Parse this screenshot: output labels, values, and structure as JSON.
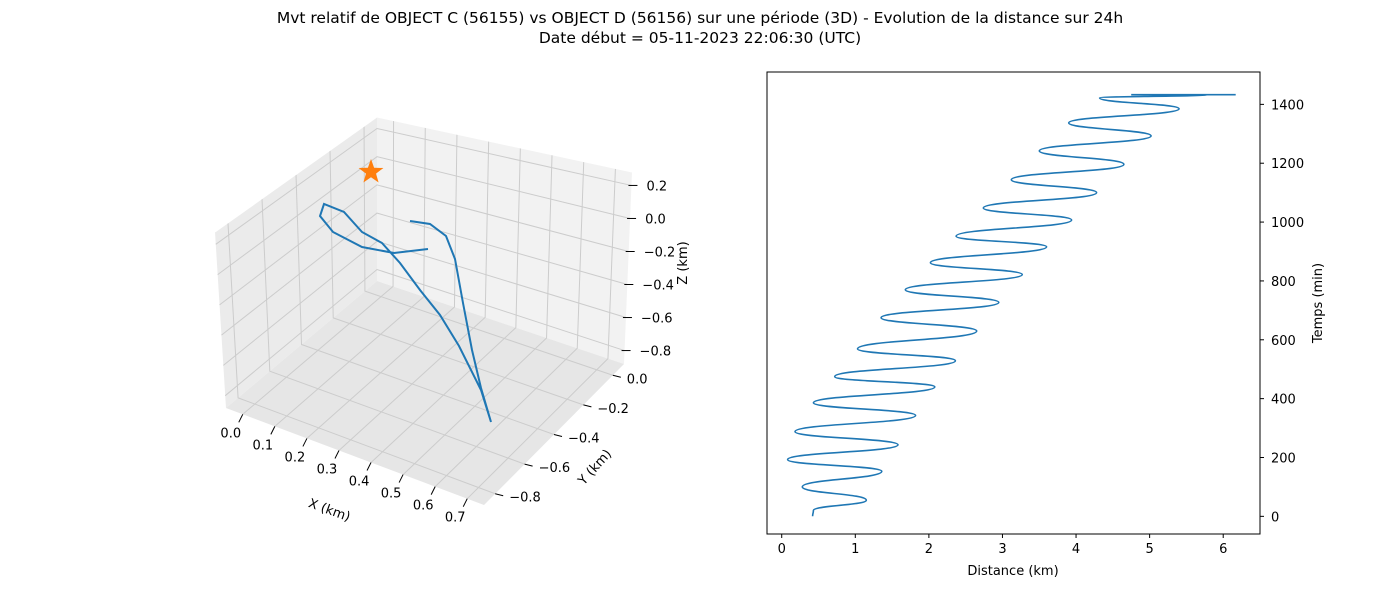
{
  "figure": {
    "title_line1": "Mvt relatif de OBJECT C (56155) vs OBJECT D (56156) sur une période (3D) - Evolution de la distance sur 24h",
    "title_line2": "Date début = 05-11-2023 22:06:30 (UTC)"
  },
  "chart_data": [
    {
      "type": "line",
      "projection": "3d",
      "xlabel": "X (km)",
      "ylabel": "Y (km)",
      "zlabel": "Z (km)",
      "xlim": [
        0.0,
        0.7
      ],
      "ylim": [
        -0.8,
        0.0
      ],
      "zlim": [
        -0.8,
        0.2
      ],
      "x_ticks": [
        "0.0",
        "0.1",
        "0.2",
        "0.3",
        "0.4",
        "0.5",
        "0.6",
        "0.7"
      ],
      "y_ticks": [
        "0.0",
        "−0.2",
        "−0.4",
        "−0.6",
        "−0.8"
      ],
      "z_ticks": [
        "0.2",
        "0.0",
        "−0.2",
        "−0.4",
        "−0.6",
        "−0.8"
      ],
      "grid": true,
      "series": [
        {
          "color": "#1f77b4",
          "marker": "none"
        },
        {
          "color": "#ff7f0e",
          "marker": "star"
        }
      ]
    },
    {
      "type": "line",
      "xlabel": "Distance (km)",
      "ylabel": "Temps (min)",
      "y_axis_side": "right",
      "xlim": [
        -0.2,
        6.5
      ],
      "ylim": [
        -60,
        1510
      ],
      "x_ticks": [
        "0",
        "1",
        "2",
        "3",
        "4",
        "5",
        "6"
      ],
      "y_ticks": [
        "0",
        "200",
        "400",
        "600",
        "800",
        "1000",
        "1200",
        "1400"
      ],
      "grid": false,
      "series": [
        {
          "color": "#1f77b4",
          "x": [
            0.42,
            0.43,
            1.15,
            0.28,
            1.36,
            0.08,
            1.58,
            0.18,
            1.82,
            0.43,
            2.08,
            0.72,
            2.36,
            1.03,
            2.65,
            1.35,
            2.95,
            1.68,
            3.27,
            2.02,
            3.6,
            2.37,
            3.94,
            2.74,
            4.28,
            3.12,
            4.65,
            3.5,
            5.02,
            3.9,
            5.4,
            4.32,
            5.78,
            4.75,
            6.17,
            4.95
          ],
          "y": [
            0,
            20,
            55,
            100,
            153,
            193,
            243,
            288,
            343,
            386,
            440,
            475,
            529,
            569,
            630,
            675,
            727,
            770,
            822,
            862,
            916,
            952,
            1007,
            1048,
            1100,
            1144,
            1196,
            1242,
            1293,
            1337,
            1385,
            1422,
            1433,
            1433,
            1433,
            1433
          ]
        }
      ]
    }
  ]
}
